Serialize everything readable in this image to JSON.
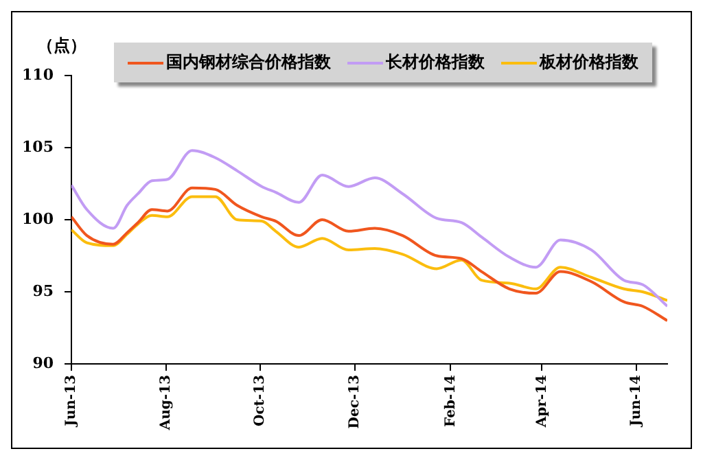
{
  "chart_data": {
    "type": "line",
    "ylabel": "（点）",
    "x": [
      "2013-06-01",
      "2013-06-11",
      "2013-06-28",
      "2013-07-07",
      "2013-07-14",
      "2013-07-23",
      "2013-08-02",
      "2013-08-18",
      "2013-09-02",
      "2013-09-16",
      "2013-10-02",
      "2013-10-11",
      "2013-10-26",
      "2013-11-10",
      "2013-11-27",
      "2013-12-14",
      "2014-01-01",
      "2014-01-23",
      "2014-02-08",
      "2014-02-21",
      "2014-03-11",
      "2014-03-28",
      "2014-04-13",
      "2014-05-03",
      "2014-05-24",
      "2014-06-05",
      "2014-06-21"
    ],
    "series": [
      {
        "name": "国内钢材综合价格指数",
        "color": "#f0561e",
        "values": [
          100.2,
          98.9,
          98.3,
          99.1,
          99.8,
          100.7,
          100.6,
          102.2,
          102.1,
          101.0,
          100.2,
          99.9,
          98.9,
          100.0,
          99.2,
          99.4,
          98.9,
          97.5,
          97.3,
          96.4,
          95.2,
          94.9,
          96.4,
          95.7,
          94.3,
          94.0,
          93.0
        ]
      },
      {
        "name": "长材价格指数",
        "color": "#c29cf4",
        "values": [
          102.4,
          100.7,
          99.4,
          101.0,
          101.8,
          102.7,
          102.8,
          104.8,
          104.3,
          103.4,
          102.3,
          101.9,
          101.2,
          103.1,
          102.3,
          102.9,
          101.8,
          100.1,
          99.8,
          98.8,
          97.4,
          96.7,
          98.6,
          97.9,
          95.8,
          95.5,
          94.0
        ]
      },
      {
        "name": "板材价格指数",
        "color": "#fbbd0e",
        "values": [
          99.3,
          98.4,
          98.2,
          99.0,
          99.7,
          100.3,
          100.2,
          101.6,
          101.6,
          100.0,
          99.9,
          99.2,
          98.1,
          98.7,
          97.9,
          98.0,
          97.6,
          96.6,
          97.2,
          95.8,
          95.6,
          95.2,
          96.7,
          96.0,
          95.2,
          95.0,
          94.4
        ]
      }
    ],
    "xlim": [
      "2013-06-01",
      "2014-06-21"
    ],
    "xticks": [
      {
        "value": "2013-06-01",
        "label": "Jun-13"
      },
      {
        "value": "2013-08-01",
        "label": "Aug-13"
      },
      {
        "value": "2013-10-01",
        "label": "Oct-13"
      },
      {
        "value": "2013-12-01",
        "label": "Dec-13"
      },
      {
        "value": "2014-02-01",
        "label": "Feb-14"
      },
      {
        "value": "2014-04-01",
        "label": "Apr-14"
      },
      {
        "value": "2014-06-01",
        "label": "Jun-14"
      }
    ],
    "ylim": [
      90,
      110
    ],
    "yticks": [
      90,
      95,
      100,
      105,
      110
    ],
    "grid": false,
    "legend": "top",
    "marker": "none",
    "line_style": "solid"
  }
}
